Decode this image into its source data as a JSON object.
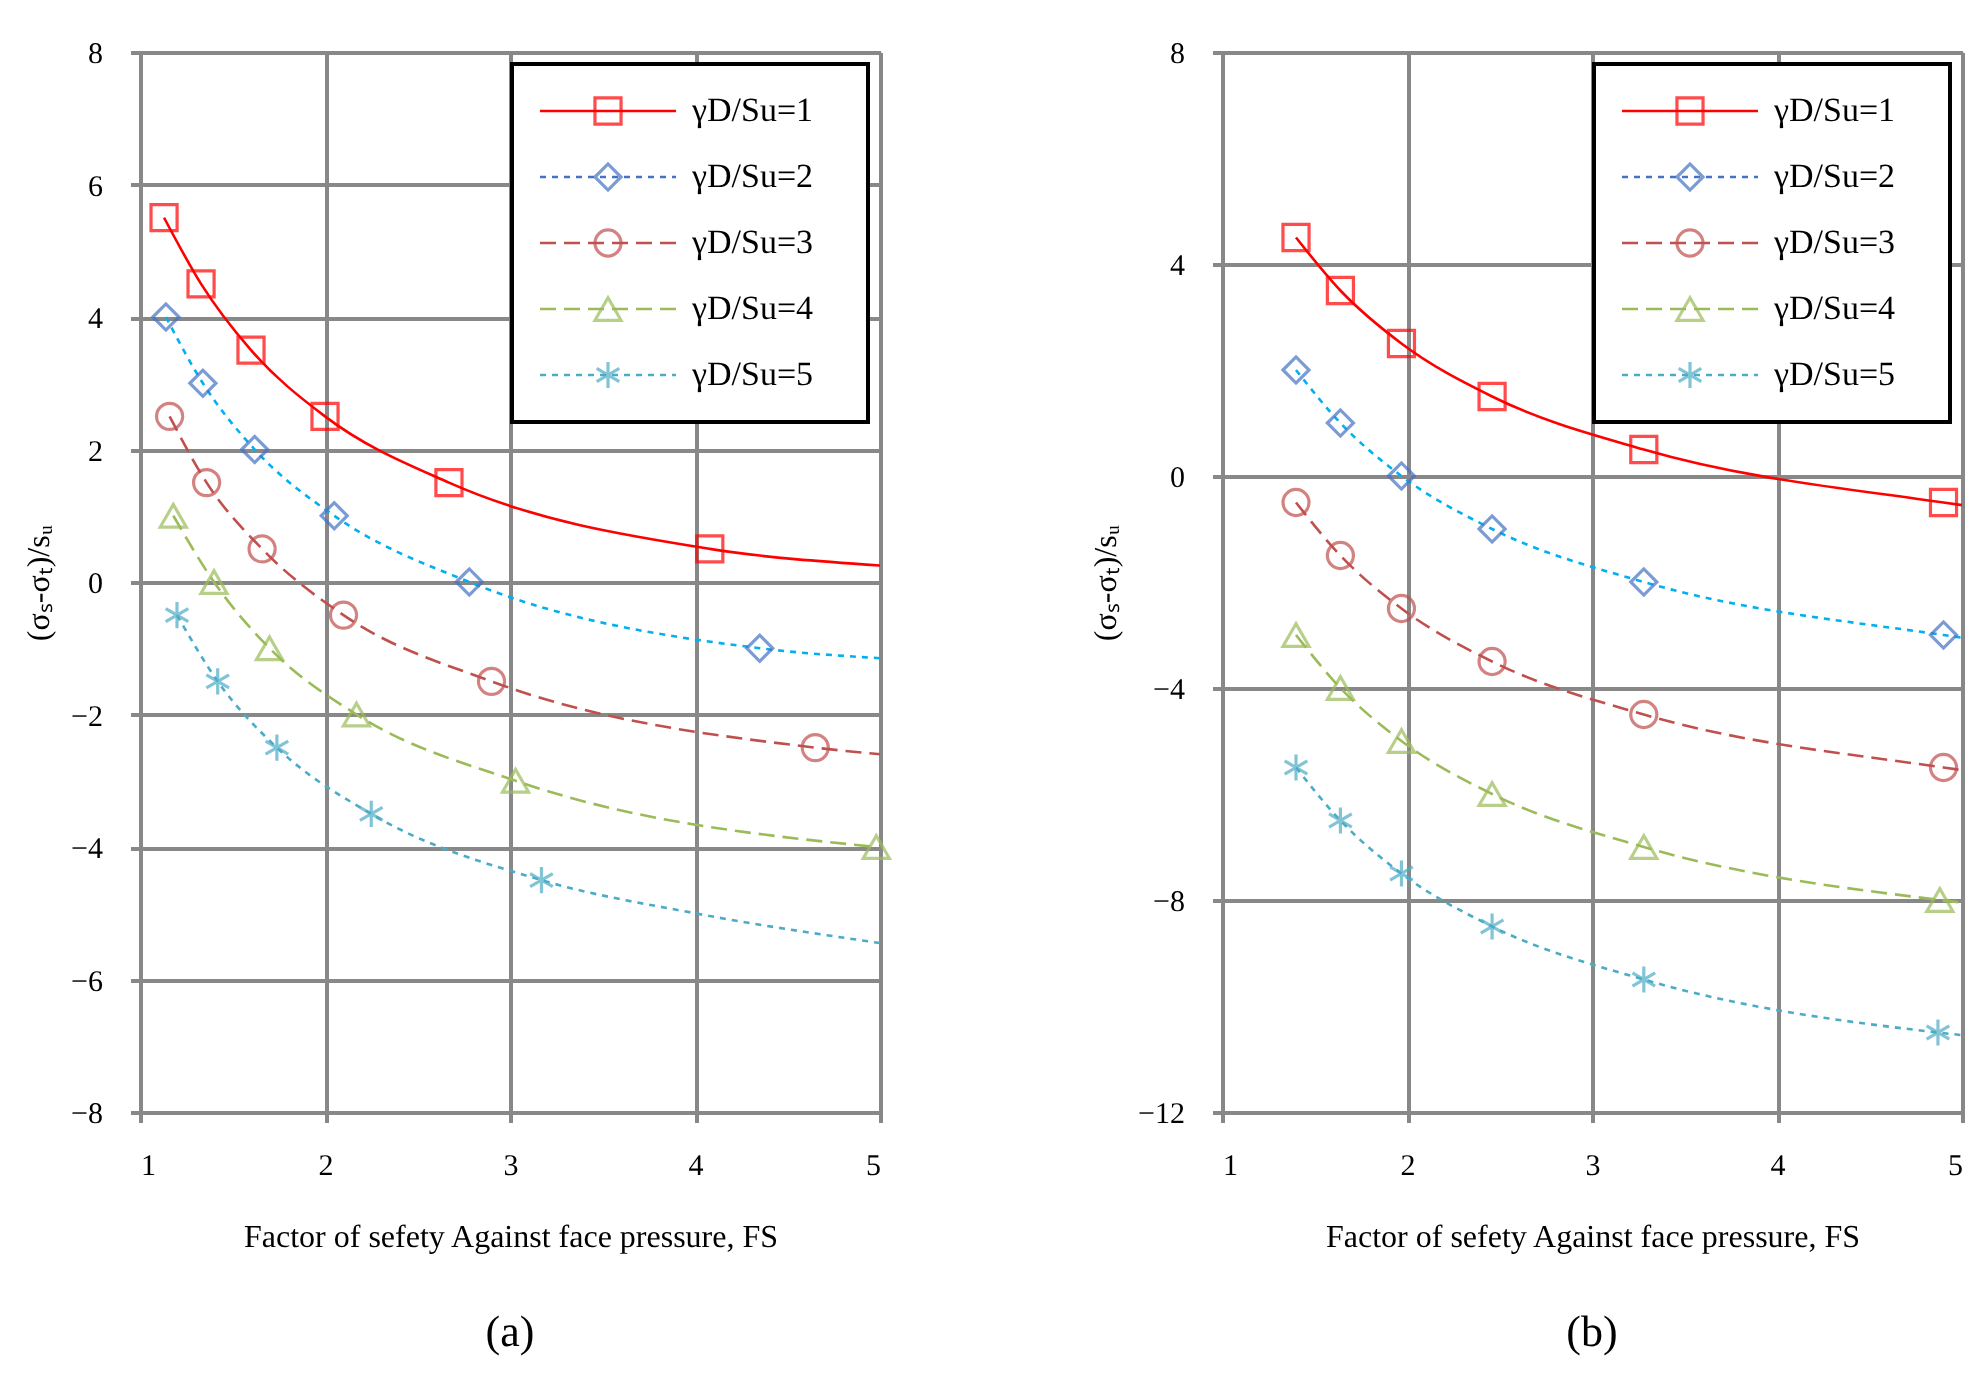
{
  "chart_data": [
    {
      "type": "scatter",
      "title": "(a)",
      "xlabel": "Factor of sefety Against face pressure, FS",
      "ylabel": "(σₛ-σₜ)/sᵤ",
      "xlim": [
        1,
        5
      ],
      "ylim": [
        -8,
        8
      ],
      "xticks": [
        1,
        2,
        3,
        4,
        5
      ],
      "yticks": [
        -8,
        -6,
        -4,
        -2,
        0,
        2,
        4,
        6,
        8
      ],
      "grid": true,
      "legend": "top right",
      "series": [
        {
          "name": "γD/Su=1",
          "marker": "square",
          "line_style": "solid",
          "color": "#ff0000",
          "x": [
            1.13,
            1.33,
            1.6,
            2.0,
            2.67,
            4.08
          ],
          "values": [
            5.5,
            4.5,
            3.5,
            2.5,
            1.5,
            0.5
          ]
        },
        {
          "name": "γD/Su=2",
          "marker": "diamond",
          "line_style": "dotted",
          "color": "#4472c4",
          "x": [
            1.14,
            1.34,
            1.62,
            2.05,
            2.78,
            4.35
          ],
          "values": [
            4.0,
            3.0,
            2.0,
            1.0,
            0,
            -1.0
          ]
        },
        {
          "name": "γD/Su=3",
          "marker": "circle",
          "line_style": "dashed",
          "color": "#c0504d",
          "x": [
            1.16,
            1.36,
            1.66,
            2.1,
            2.9,
            4.65
          ],
          "values": [
            2.5,
            1.5,
            0.5,
            -0.5,
            -1.5,
            -2.5
          ]
        },
        {
          "name": "γD/Su=4",
          "marker": "triangle",
          "line_style": "dashed",
          "color": "#9bbb59",
          "x": [
            1.18,
            1.4,
            1.7,
            2.17,
            3.03,
            4.98
          ],
          "values": [
            1.0,
            0,
            -1.0,
            -2.0,
            -3.0,
            -4.0
          ]
        },
        {
          "name": "γD/Su=5",
          "marker": "cross",
          "line_style": "dotted",
          "color": "#4bacc6",
          "x": [
            1.2,
            1.42,
            1.74,
            2.25,
            3.17
          ],
          "values": [
            -0.5,
            -1.5,
            -2.5,
            -3.5,
            -4.5
          ]
        },
        {
          "type": "line",
          "line_style": "solid",
          "color": "#ff0000",
          "x": [
            1.13,
            1.33,
            1.6,
            2.0,
            2.67,
            4.08,
            5
          ],
          "values": [
            5.5,
            4.5,
            3.5,
            2.5,
            1.5,
            0.5,
            0.25
          ]
        },
        {
          "type": "line",
          "line_style": "dotted",
          "color": "#00b0f0",
          "x": [
            1.14,
            1.34,
            1.62,
            2.05,
            2.78,
            4.35,
            5
          ],
          "values": [
            4.0,
            3.0,
            2.0,
            1.0,
            0,
            -1.0,
            -1.15
          ]
        },
        {
          "type": "line",
          "line_style": "dashed",
          "color": "#c0504d",
          "x": [
            1.16,
            1.36,
            1.66,
            2.1,
            2.9,
            4.65,
            5
          ],
          "values": [
            2.5,
            1.5,
            0.5,
            -0.5,
            -1.5,
            -2.5,
            -2.6
          ]
        },
        {
          "type": "line",
          "line_style": "dashed",
          "color": "#9bbb59",
          "x": [
            1.18,
            1.4,
            1.7,
            2.17,
            3.03,
            4.98
          ],
          "values": [
            1.0,
            0,
            -1.0,
            -2.0,
            -3.0,
            -4.0
          ]
        },
        {
          "type": "line",
          "line_style": "dotted",
          "color": "#4bacc6",
          "x": [
            1.2,
            1.42,
            1.74,
            2.25,
            3.17,
            4.0,
            5
          ],
          "values": [
            -0.5,
            -1.5,
            -2.5,
            -3.5,
            -4.5,
            -5.0,
            -5.45
          ]
        }
      ]
    },
    {
      "type": "scatter",
      "title": "(b)",
      "xlabel": "Factor of sefety Against face pressure, FS",
      "ylabel": "(σₛ-σₜ)/sᵤ",
      "xlim": [
        1,
        5
      ],
      "ylim": [
        -12,
        8
      ],
      "xticks": [
        1,
        2,
        3,
        4,
        5
      ],
      "yticks": [
        -12,
        -8,
        -4,
        0,
        4,
        8
      ],
      "grid": true,
      "legend": "top right",
      "series": [
        {
          "name": "γD/Su=1",
          "marker": "square",
          "line_style": "solid",
          "color": "#ff0000",
          "x": [
            1.4,
            1.64,
            1.97,
            2.46,
            3.28,
            4.9
          ],
          "values": [
            4.5,
            3.5,
            2.5,
            1.5,
            0.5,
            -0.5
          ]
        },
        {
          "name": "γD/Su=2",
          "marker": "diamond",
          "line_style": "dotted",
          "color": "#4472c4",
          "x": [
            1.4,
            1.64,
            1.97,
            2.46,
            3.28,
            4.9
          ],
          "values": [
            2,
            1,
            0,
            -1,
            -2,
            -3
          ]
        },
        {
          "name": "γD/Su=3",
          "marker": "circle",
          "line_style": "dashed",
          "color": "#c0504d",
          "x": [
            1.4,
            1.64,
            1.97,
            2.46,
            3.28,
            4.9
          ],
          "values": [
            -0.5,
            -1.5,
            -2.5,
            -3.5,
            -4.5,
            -5.5
          ]
        },
        {
          "name": "γD/Su=4",
          "marker": "triangle",
          "line_style": "dashed",
          "color": "#9bbb59",
          "x": [
            1.4,
            1.64,
            1.97,
            2.46,
            3.28,
            4.88
          ],
          "values": [
            -3,
            -4,
            -5,
            -6,
            -7,
            -8
          ]
        },
        {
          "name": "γD/Su=5",
          "marker": "cross",
          "line_style": "dotted",
          "color": "#4bacc6",
          "x": [
            1.4,
            1.64,
            1.97,
            2.46,
            3.28,
            4.87
          ],
          "values": [
            -5.5,
            -6.5,
            -7.5,
            -8.5,
            -9.5,
            -10.5
          ]
        },
        {
          "type": "line",
          "line_style": "solid",
          "color": "#ff0000",
          "x": [
            1.4,
            1.64,
            1.97,
            2.46,
            3.28,
            4.9,
            5
          ],
          "values": [
            4.5,
            3.5,
            2.5,
            1.5,
            0.5,
            -0.5,
            -0.55
          ]
        },
        {
          "type": "line",
          "line_style": "dotted",
          "color": "#00b0f0",
          "x": [
            1.4,
            1.64,
            1.97,
            2.46,
            3.28,
            4.9,
            5
          ],
          "values": [
            2,
            1,
            0,
            -1,
            -2,
            -3,
            -3.05
          ]
        },
        {
          "type": "line",
          "line_style": "dashed",
          "color": "#c0504d",
          "x": [
            1.4,
            1.64,
            1.97,
            2.46,
            3.28,
            4.9,
            5
          ],
          "values": [
            -0.5,
            -1.5,
            -2.5,
            -3.5,
            -4.5,
            -5.5,
            -5.55
          ]
        },
        {
          "type": "line",
          "line_style": "dashed",
          "color": "#9bbb59",
          "x": [
            1.4,
            1.64,
            1.97,
            2.46,
            3.28,
            4.88,
            5
          ],
          "values": [
            -3,
            -4,
            -5,
            -6,
            -7,
            -8,
            -8.05
          ]
        },
        {
          "type": "line",
          "line_style": "dotted",
          "color": "#4bacc6",
          "x": [
            1.4,
            1.64,
            1.97,
            2.46,
            3.28,
            4.87,
            5
          ],
          "values": [
            -5.5,
            -6.5,
            -7.5,
            -8.5,
            -9.5,
            -10.5,
            -10.55
          ]
        }
      ]
    }
  ]
}
